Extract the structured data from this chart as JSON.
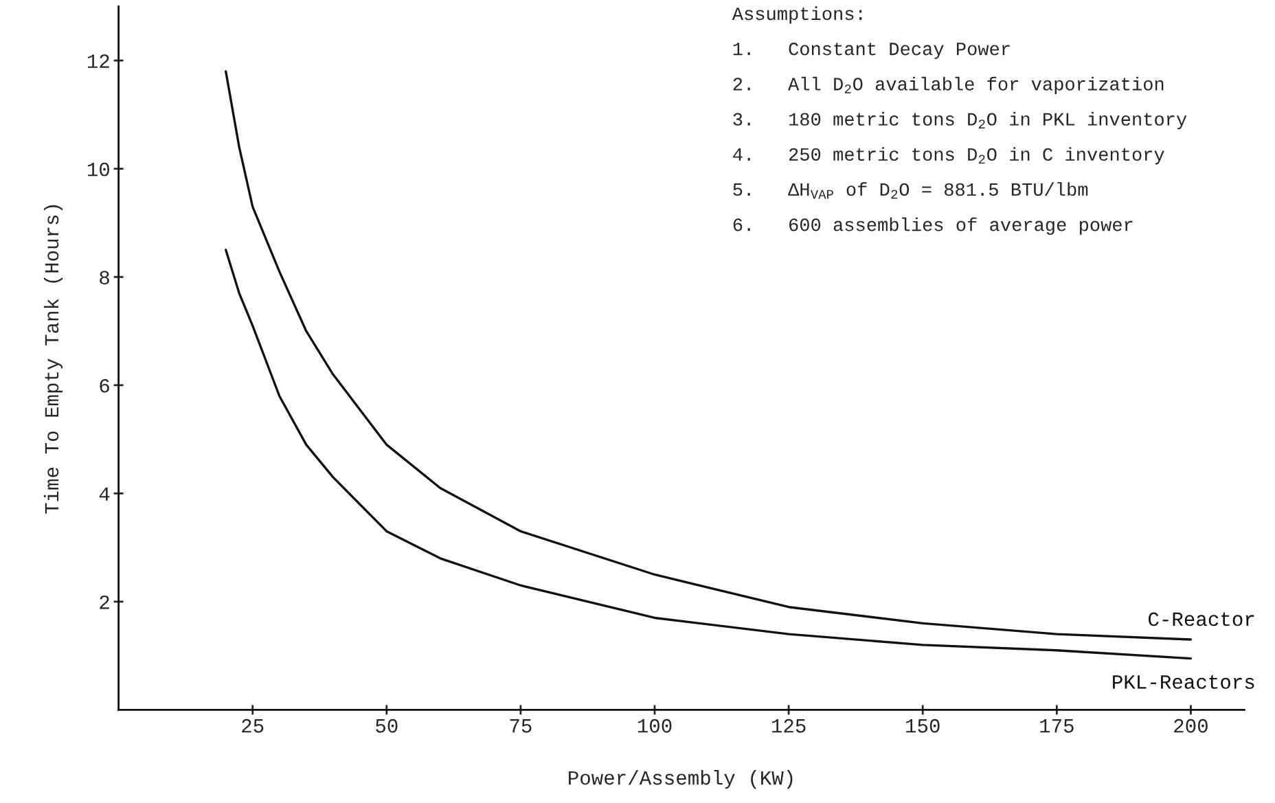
{
  "chart_data": {
    "type": "line",
    "xlabel": "Power/Assembly (KW)",
    "ylabel": "Time To Empty Tank (Hours)",
    "x": [
      20,
      22.5,
      25,
      30,
      35,
      40,
      50,
      60,
      75,
      100,
      125,
      150,
      175,
      200
    ],
    "series": [
      {
        "name": "C-Reactor",
        "color": "#111111",
        "values": [
          11.8,
          10.4,
          9.3,
          8.1,
          7.0,
          6.2,
          4.9,
          4.1,
          3.3,
          2.5,
          1.9,
          1.6,
          1.4,
          1.3
        ]
      },
      {
        "name": "PKL-Reactors",
        "color": "#111111",
        "values": [
          8.5,
          7.7,
          7.1,
          5.8,
          4.9,
          4.3,
          3.3,
          2.8,
          2.3,
          1.7,
          1.4,
          1.2,
          1.1,
          0.95
        ]
      }
    ],
    "xlim": [
      0,
      210
    ],
    "ylim": [
      0,
      13
    ],
    "xticks": [
      25,
      50,
      75,
      100,
      125,
      150,
      175,
      200
    ],
    "yticks": [
      2,
      4,
      6,
      8,
      10,
      12
    ],
    "grid": false,
    "legend": false,
    "marker": "none",
    "line_style": "solid",
    "annotations": [
      "Assumptions:",
      "1.   Constant Decay Power",
      "2.   All D$_{2}$O available for vaporization",
      "3.   180 metric tons D$_{2}$O in PKL inventory",
      "4.   250 metric tons D$_{2}$O in C inventory",
      "5.   ΔH$_{VAP}$ of D$_{2}$O = 881.5 BTU/lbm",
      "6.   600 assemblies of average power"
    ]
  }
}
